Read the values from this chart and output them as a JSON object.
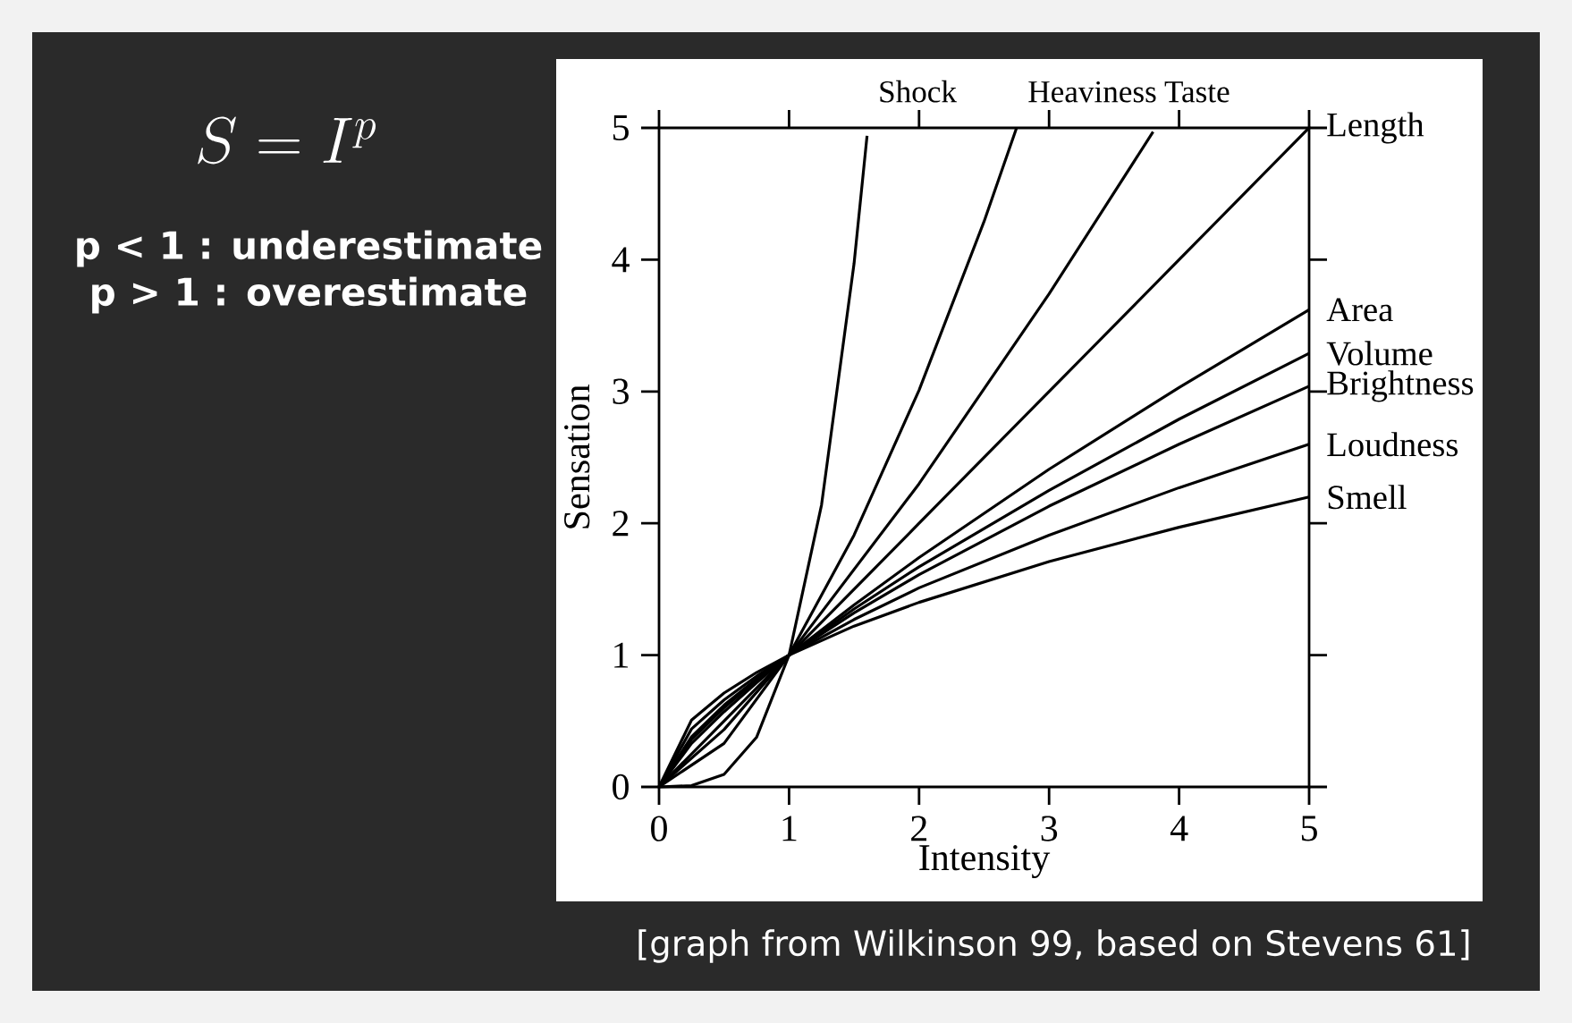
{
  "chart_data": {
    "type": "line",
    "xlabel": "Intensity",
    "ylabel": "Sensation",
    "xlim": [
      0,
      5
    ],
    "ylim": [
      0,
      5
    ],
    "xticks": [
      0,
      1,
      2,
      3,
      4,
      5
    ],
    "yticks": [
      0,
      1,
      2,
      3,
      4,
      5
    ],
    "marker": "none",
    "line_style": "solid",
    "legend": "right",
    "series": [
      {
        "name": "Shock",
        "color": "#000000",
        "x": [
          0,
          0.25,
          0.5,
          0.75,
          1,
          1.25,
          1.5,
          1.6
        ],
        "values": [
          0,
          0.01,
          0.095,
          0.376,
          1,
          2.14,
          3.97,
          4.94
        ]
      },
      {
        "name": "Heaviness",
        "color": "#000000",
        "x": [
          0,
          0.5,
          1,
          1.5,
          2,
          2.5,
          2.75
        ],
        "values": [
          0,
          0.33,
          1,
          1.91,
          3.01,
          4.29,
          5.0
        ]
      },
      {
        "name": "Taste",
        "color": "#000000",
        "x": [
          0,
          0.5,
          1,
          2,
          3,
          3.8
        ],
        "values": [
          0,
          0.435,
          1,
          2.3,
          3.74,
          4.97
        ]
      },
      {
        "name": "Length",
        "color": "#000000",
        "x": [
          0,
          1,
          2,
          3,
          4,
          5
        ],
        "values": [
          0,
          1,
          2,
          3,
          4,
          5
        ]
      },
      {
        "name": "Area",
        "color": "#000000",
        "x": [
          0,
          0.25,
          0.5,
          0.75,
          1,
          1.5,
          2,
          3,
          4,
          5
        ],
        "values": [
          0,
          0.33,
          0.57,
          0.79,
          1,
          1.38,
          1.74,
          2.41,
          3.03,
          3.62
        ]
      },
      {
        "name": "Volume",
        "color": "#000000",
        "x": [
          0,
          0.25,
          0.5,
          0.75,
          1,
          1.5,
          2,
          3,
          4,
          5
        ],
        "values": [
          0,
          0.36,
          0.6,
          0.81,
          1,
          1.35,
          1.67,
          2.25,
          2.79,
          3.29
        ]
      },
      {
        "name": "Brightness",
        "color": "#000000",
        "x": [
          0,
          0.25,
          0.5,
          0.75,
          1,
          1.5,
          2,
          3,
          4,
          5
        ],
        "values": [
          0,
          0.38,
          0.62,
          0.82,
          1,
          1.32,
          1.61,
          2.13,
          2.6,
          3.04
        ]
      },
      {
        "name": "Loudness",
        "color": "#000000",
        "x": [
          0,
          0.25,
          0.5,
          0.75,
          1,
          1.5,
          2,
          3,
          4,
          5
        ],
        "values": [
          0,
          0.44,
          0.66,
          0.84,
          1,
          1.27,
          1.51,
          1.91,
          2.27,
          2.6
        ]
      },
      {
        "name": "Smell",
        "color": "#000000",
        "x": [
          0,
          0.25,
          0.5,
          0.75,
          1,
          1.5,
          2,
          3,
          4,
          5
        ],
        "values": [
          0,
          0.507,
          0.712,
          0.868,
          1,
          1.22,
          1.4,
          1.71,
          1.97,
          2.2
        ]
      }
    ],
    "annotations": [
      "S = I^{p}",
      "p < 1 : underestimate",
      "p > 1 : overestimate",
      "[graph from Wilkinson 99, based on Stevens 61]"
    ]
  }
}
